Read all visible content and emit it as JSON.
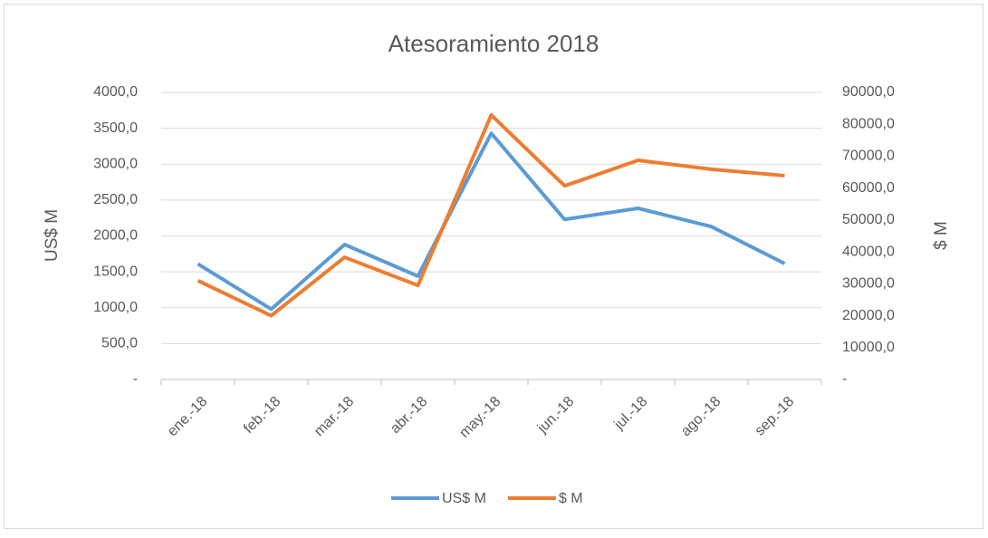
{
  "chart_data": {
    "type": "line",
    "title": "Atesoramiento 2018",
    "ylabel": "US$ M",
    "y2label": "$ M",
    "categories": [
      "ene.-18",
      "feb.-18",
      "mar.-18",
      "abr.-18",
      "may.-18",
      "jun.-18",
      "jul.-18",
      "ago.-18",
      "sep.-18"
    ],
    "series": [
      {
        "name": "US$ M",
        "color": "#5b9bd5",
        "values": [
          1610,
          980,
          1880,
          1440,
          3430,
          2230,
          2385,
          2130,
          1615
        ]
      },
      {
        "name": "$ M",
        "color": "#ed7d31",
        "axis": "y2",
        "values": [
          31000,
          20000,
          38300,
          29500,
          82900,
          60700,
          68700,
          65900,
          63900
        ]
      }
    ],
    "ylim": [
      0,
      4000
    ],
    "yticks": [
      {
        "value": 0,
        "label": "-"
      },
      {
        "value": 500,
        "label": "500,0"
      },
      {
        "value": 1000,
        "label": "1000,0"
      },
      {
        "value": 1500,
        "label": "1500,0"
      },
      {
        "value": 2000,
        "label": "2000,0"
      },
      {
        "value": 2500,
        "label": "2500,0"
      },
      {
        "value": 3000,
        "label": "3000,0"
      },
      {
        "value": 3500,
        "label": "3500,0"
      },
      {
        "value": 4000,
        "label": "4000,0"
      }
    ],
    "y2lim": [
      0,
      90000
    ],
    "y2ticks": [
      {
        "value": 0,
        "label": "-"
      },
      {
        "value": 10000,
        "label": "10000,0"
      },
      {
        "value": 20000,
        "label": "20000,0"
      },
      {
        "value": 30000,
        "label": "30000,0"
      },
      {
        "value": 40000,
        "label": "40000,0"
      },
      {
        "value": 50000,
        "label": "50000,0"
      },
      {
        "value": 60000,
        "label": "60000,0"
      },
      {
        "value": 70000,
        "label": "70000,0"
      },
      {
        "value": 80000,
        "label": "80000,0"
      },
      {
        "value": 90000,
        "label": "90000,0"
      }
    ],
    "grid": true,
    "legend": "bottom"
  }
}
